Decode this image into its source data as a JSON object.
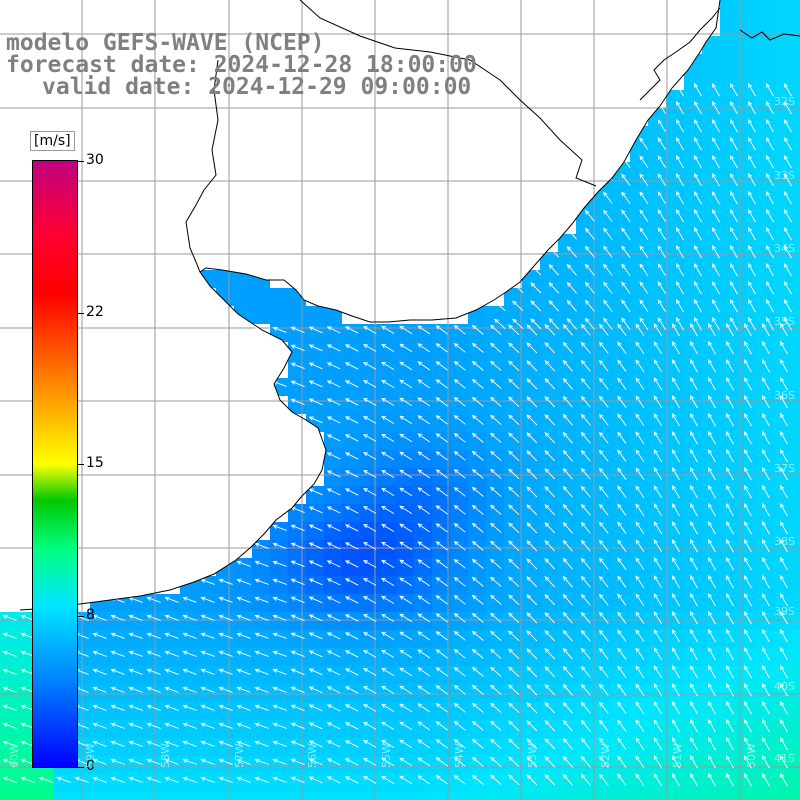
{
  "header": {
    "line1": "modelo GEFS-WAVE (NCEP)",
    "line2": "forecast date: 2024-12-28 18:00:00",
    "line3": "valid date: 2024-12-29 09:00:00"
  },
  "colorbar": {
    "unit": "[m/s]",
    "min": 0,
    "max": 30,
    "ticks": [
      "30",
      "22",
      "15",
      "8",
      "0"
    ],
    "tick_values": [
      30,
      22,
      15,
      8,
      0
    ],
    "stops": [
      {
        "value": 0,
        "color": "#0000ff"
      },
      {
        "value": 4,
        "color": "#0080ff"
      },
      {
        "value": 8,
        "color": "#00e6ff"
      },
      {
        "value": 11,
        "color": "#00ff80"
      },
      {
        "value": 13,
        "color": "#00c800"
      },
      {
        "value": 15,
        "color": "#ffff00"
      },
      {
        "value": 19,
        "color": "#ff8000"
      },
      {
        "value": 23,
        "color": "#ff0000"
      },
      {
        "value": 26,
        "color": "#ff0033"
      },
      {
        "value": 30,
        "color": "#c00080"
      }
    ]
  },
  "grid_labels": {
    "lat": [
      "32S",
      "33S",
      "34S",
      "35S",
      "36S",
      "37S",
      "38S",
      "39S",
      "40S",
      "41S"
    ],
    "lon": [
      "60W",
      "59W",
      "58W",
      "57W",
      "56W",
      "55W",
      "54W",
      "53W",
      "52W",
      "51W",
      "50W"
    ]
  },
  "colors": {
    "land": "#ffffff",
    "coast": "#000000",
    "grid": "#9a9a9a",
    "arrow": "#ffffff"
  }
}
